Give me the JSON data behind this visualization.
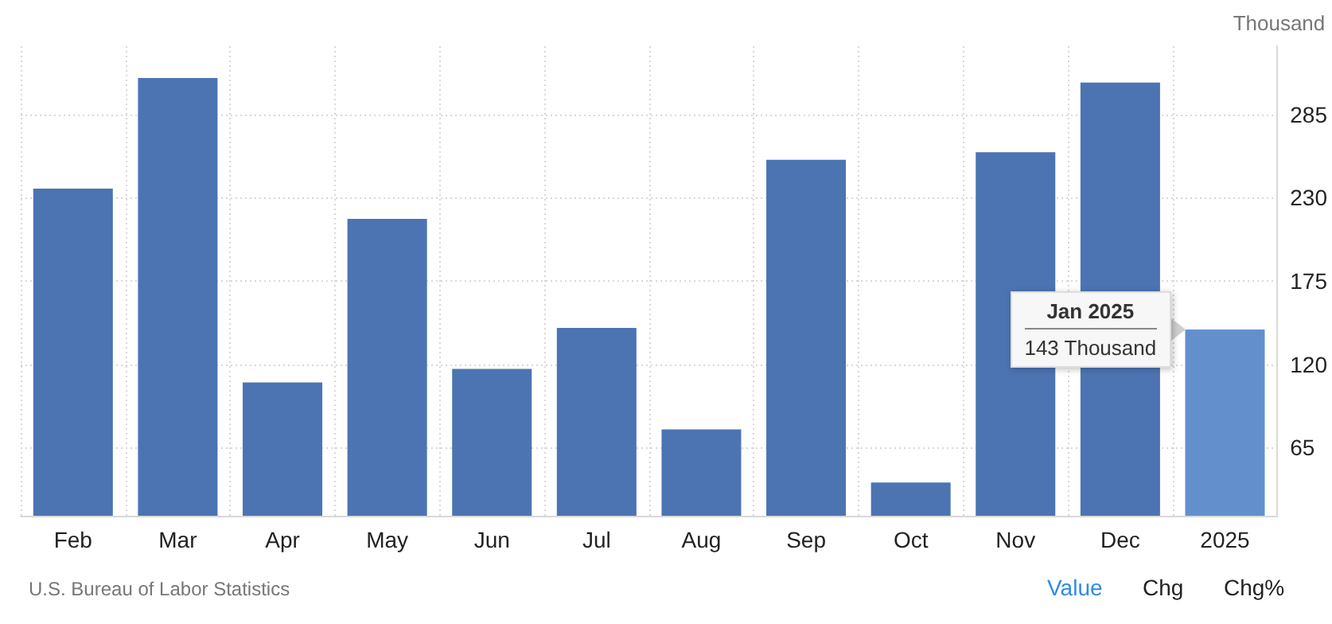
{
  "chart_data": {
    "type": "bar",
    "ylabel": "Thousand",
    "categories": [
      "Feb",
      "Mar",
      "Apr",
      "May",
      "Jun",
      "Jul",
      "Aug",
      "Sep",
      "Oct",
      "Nov",
      "Dec",
      "2025"
    ],
    "values": [
      236,
      309,
      108,
      216,
      117,
      144,
      77,
      255,
      42,
      260,
      306,
      143
    ],
    "colors": [
      "#4c74b2",
      "#4c74b2",
      "#4c74b2",
      "#4c74b2",
      "#4c74b2",
      "#4c74b2",
      "#4c74b2",
      "#4c74b2",
      "#4c74b2",
      "#4c74b2",
      "#4c74b2",
      "#6390cc"
    ],
    "ylim": [
      20,
      330
    ],
    "yticks": [
      65,
      120,
      175,
      230,
      285
    ],
    "grid": true,
    "annotations": [
      "Jan 2025\n143 Thousand",
      "U.S. Bureau of Labor Statistics",
      "Value",
      "Chg",
      "Chg%"
    ]
  }
}
